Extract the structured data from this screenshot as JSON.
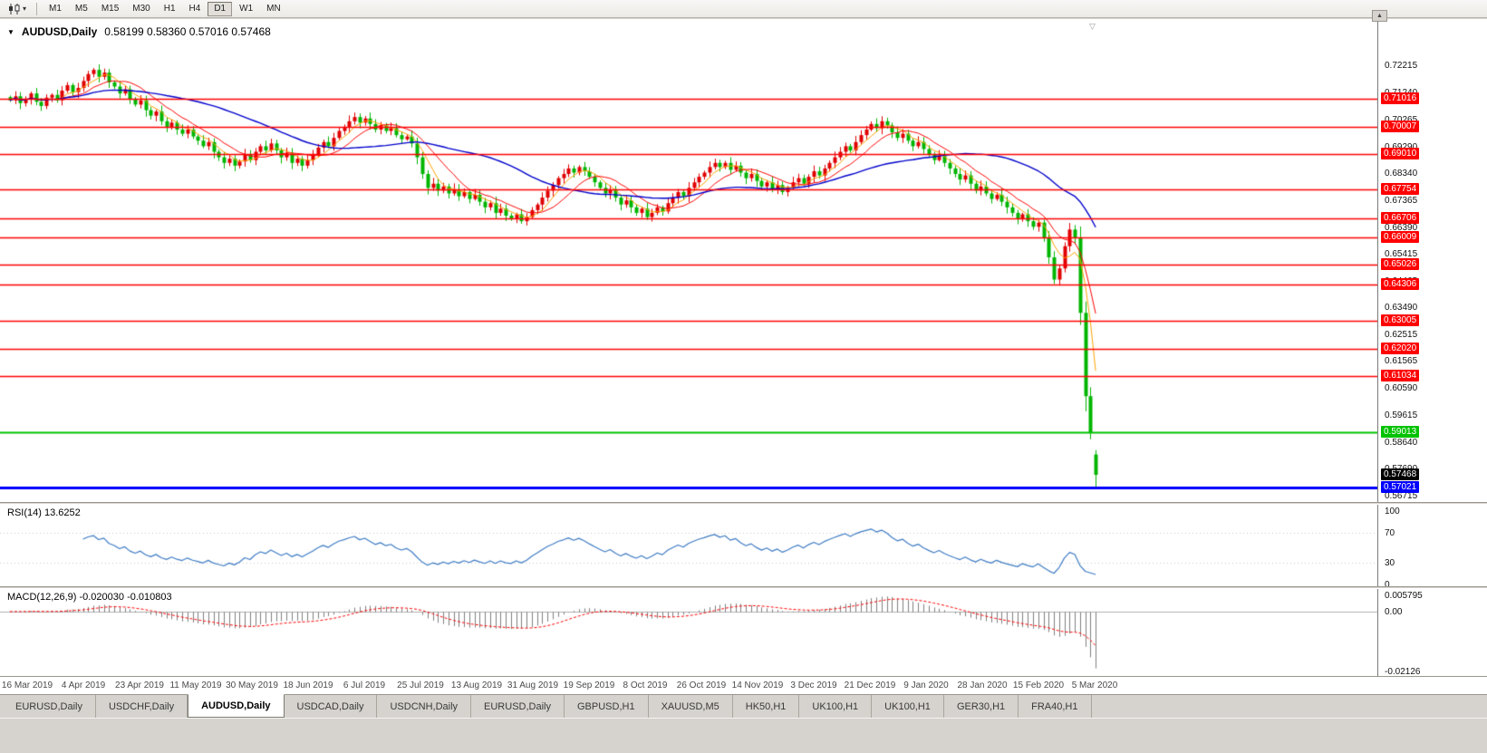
{
  "icons": {
    "chart_menu": "▼",
    "toolbar_caret": "▾",
    "scroll_up": "▲",
    "shift_marker": "▽"
  },
  "toolbar": {
    "timeframes": [
      {
        "label": "M1",
        "active": false
      },
      {
        "label": "M5",
        "active": false
      },
      {
        "label": "M15",
        "active": false
      },
      {
        "label": "M30",
        "active": false
      },
      {
        "label": "H1",
        "active": false
      },
      {
        "label": "H4",
        "active": false
      },
      {
        "label": "D1",
        "active": true
      },
      {
        "label": "W1",
        "active": false
      },
      {
        "label": "MN",
        "active": false
      }
    ]
  },
  "chart": {
    "symbol": "AUDUSD,Daily",
    "ohlc": "0.58199 0.58360 0.57016 0.57468"
  },
  "rsi": {
    "title": "RSI(14) 13.6252",
    "ticks": [
      {
        "label": "100",
        "value": 100,
        "dotted": false
      },
      {
        "label": "70",
        "value": 70,
        "dotted": true
      },
      {
        "label": "30",
        "value": 30,
        "dotted": true
      },
      {
        "label": "0",
        "value": 0,
        "dotted": false
      }
    ]
  },
  "macd": {
    "title": "MACD(12,26,9) -0.020030 -0.010803",
    "ticks": [
      {
        "label": "0.005795",
        "value": 0.005795
      },
      {
        "label": "0.00",
        "value": 0
      },
      {
        "label": "-0.02126",
        "value": -0.02126
      }
    ]
  },
  "tabs": [
    {
      "label": "EURUSD,Daily",
      "active": false
    },
    {
      "label": "USDCHF,Daily",
      "active": false
    },
    {
      "label": "AUDUSD,Daily",
      "active": true
    },
    {
      "label": "USDCAD,Daily",
      "active": false
    },
    {
      "label": "USDCNH,Daily",
      "active": false
    },
    {
      "label": "EURUSD,Daily",
      "active": false
    },
    {
      "label": "GBPUSD,H1",
      "active": false
    },
    {
      "label": "XAUUSD,M5",
      "active": false
    },
    {
      "label": "HK50,H1",
      "active": false
    },
    {
      "label": "UK100,H1",
      "active": false
    },
    {
      "label": "UK100,H1",
      "active": false
    },
    {
      "label": "GER30,H1",
      "active": false
    },
    {
      "label": "FRA40,H1",
      "active": false
    }
  ],
  "chart_data": {
    "type": "candlestick",
    "symbol": "AUDUSD",
    "period": "Daily",
    "price_domain": {
      "min": 0.5649,
      "max": 0.7388
    },
    "colors": {
      "up": "#e00000",
      "down": "#00b500",
      "ma_fast": "#ffa200",
      "ma_mid": "#ff0000",
      "ma_slow": "#0000cc",
      "rsi": "#3f7cc4",
      "macd_hist": "#7f7f7f",
      "macd_signal": "#ff0000"
    },
    "indicator_params": {
      "ma_fast": 5,
      "ma_mid": 10,
      "ma_slow": 34,
      "rsi_period": 14,
      "macd": [
        12,
        26,
        9
      ]
    },
    "last_candle": {
      "open": 0.58199,
      "high": 0.5836,
      "low": 0.57016,
      "close": 0.57468
    },
    "current_price": {
      "label": "0.57468",
      "value": 0.57468,
      "color": "#000000"
    },
    "levels": [
      {
        "label": "0.71016",
        "value": 0.71016,
        "color": "#ff0000",
        "width": 1.4
      },
      {
        "label": "0.70007",
        "value": 0.70007,
        "color": "#ff0000",
        "width": 1.4
      },
      {
        "label": "0.69010",
        "value": 0.6901,
        "color": "#ff0000",
        "width": 1.4
      },
      {
        "label": "0.67754",
        "value": 0.67754,
        "color": "#ff0000",
        "width": 1.4
      },
      {
        "label": "0.66706",
        "value": 0.66706,
        "color": "#ff0000",
        "width": 1.4
      },
      {
        "label": "0.66009",
        "value": 0.66009,
        "color": "#ff0000",
        "width": 1.4
      },
      {
        "label": "0.65026",
        "value": 0.65026,
        "color": "#ff0000",
        "width": 1.4
      },
      {
        "label": "0.64306",
        "value": 0.64306,
        "color": "#ff0000",
        "width": 1.4
      },
      {
        "label": "0.63005",
        "value": 0.63005,
        "color": "#ff0000",
        "width": 1.4
      },
      {
        "label": "0.62020",
        "value": 0.6202,
        "color": "#ff0000",
        "width": 1.4
      },
      {
        "label": "0.61034",
        "value": 0.61034,
        "color": "#ff0000",
        "width": 1.4
      },
      {
        "label": "0.59013",
        "value": 0.59013,
        "color": "#00c200",
        "width": 2
      },
      {
        "label": "0.57021",
        "value": 0.57021,
        "color": "#0000ff",
        "width": 3
      }
    ],
    "price_axis_ticks": [
      {
        "label": "0.72215",
        "value": 0.72215
      },
      {
        "label": "0.71240",
        "value": 0.7124
      },
      {
        "label": "0.70265",
        "value": 0.70265
      },
      {
        "label": "0.69290",
        "value": 0.6929
      },
      {
        "label": "0.68340",
        "value": 0.6834
      },
      {
        "label": "0.67365",
        "value": 0.67365
      },
      {
        "label": "0.66390",
        "value": 0.6639
      },
      {
        "label": "0.65415",
        "value": 0.65415
      },
      {
        "label": "0.64465",
        "value": 0.64465
      },
      {
        "label": "0.63490",
        "value": 0.6349
      },
      {
        "label": "0.62515",
        "value": 0.62515
      },
      {
        "label": "0.61565",
        "value": 0.61565
      },
      {
        "label": "0.60590",
        "value": 0.6059
      },
      {
        "label": "0.59615",
        "value": 0.59615
      },
      {
        "label": "0.58640",
        "value": 0.5864
      },
      {
        "label": "0.57690",
        "value": 0.5769
      },
      {
        "label": "0.56715",
        "value": 0.56715
      }
    ],
    "date_labels": [
      "16 Mar 2019",
      "4 Apr 2019",
      "23 Apr 2019",
      "11 May 2019",
      "30 May 2019",
      "18 Jun 2019",
      "6 Jul 2019",
      "25 Jul 2019",
      "13 Aug 2019",
      "31 Aug 2019",
      "19 Sep 2019",
      "8 Oct 2019",
      "26 Oct 2019",
      "14 Nov 2019",
      "3 Dec 2019",
      "21 Dec 2019",
      "9 Jan 2020",
      "28 Jan 2020",
      "15 Feb 2020",
      "5 Mar 2020"
    ],
    "closes": [
      0.7095,
      0.711,
      0.7085,
      0.71,
      0.712,
      0.709,
      0.7075,
      0.7105,
      0.7115,
      0.7095,
      0.713,
      0.715,
      0.7125,
      0.714,
      0.7165,
      0.719,
      0.7205,
      0.718,
      0.7195,
      0.716,
      0.7145,
      0.712,
      0.7135,
      0.71,
      0.708,
      0.7095,
      0.706,
      0.704,
      0.7055,
      0.702,
      0.7,
      0.7015,
      0.699,
      0.6975,
      0.699,
      0.6965,
      0.695,
      0.693,
      0.6945,
      0.691,
      0.689,
      0.687,
      0.6885,
      0.686,
      0.6875,
      0.69,
      0.688,
      0.691,
      0.693,
      0.6915,
      0.694,
      0.6915,
      0.689,
      0.6905,
      0.687,
      0.6885,
      0.686,
      0.688,
      0.69,
      0.6925,
      0.6945,
      0.693,
      0.696,
      0.6985,
      0.7,
      0.702,
      0.7035,
      0.7015,
      0.703,
      0.701,
      0.699,
      0.7005,
      0.6985,
      0.6995,
      0.697,
      0.6955,
      0.6965,
      0.694,
      0.689,
      0.683,
      0.678,
      0.6795,
      0.677,
      0.6785,
      0.676,
      0.6775,
      0.675,
      0.6765,
      0.674,
      0.6755,
      0.673,
      0.671,
      0.6725,
      0.669,
      0.6705,
      0.668,
      0.667,
      0.6685,
      0.666,
      0.6675,
      0.67,
      0.672,
      0.6745,
      0.677,
      0.679,
      0.6815,
      0.683,
      0.685,
      0.6835,
      0.6855,
      0.684,
      0.682,
      0.68,
      0.678,
      0.676,
      0.6775,
      0.6745,
      0.672,
      0.6735,
      0.671,
      0.669,
      0.6705,
      0.6675,
      0.669,
      0.671,
      0.6695,
      0.6725,
      0.6745,
      0.6765,
      0.675,
      0.678,
      0.68,
      0.682,
      0.6835,
      0.6855,
      0.687,
      0.6855,
      0.687,
      0.6845,
      0.686,
      0.6835,
      0.6815,
      0.683,
      0.6805,
      0.6785,
      0.68,
      0.6775,
      0.679,
      0.6765,
      0.678,
      0.68,
      0.6815,
      0.6795,
      0.682,
      0.684,
      0.6825,
      0.685,
      0.687,
      0.689,
      0.691,
      0.693,
      0.6915,
      0.6945,
      0.697,
      0.699,
      0.701,
      0.6995,
      0.702,
      0.7005,
      0.698,
      0.696,
      0.6975,
      0.695,
      0.693,
      0.6945,
      0.692,
      0.69,
      0.688,
      0.6895,
      0.687,
      0.685,
      0.683,
      0.681,
      0.6825,
      0.6795,
      0.677,
      0.6785,
      0.676,
      0.674,
      0.6755,
      0.673,
      0.671,
      0.669,
      0.667,
      0.6685,
      0.666,
      0.664,
      0.6655,
      0.66,
      0.653,
      0.645,
      0.649,
      0.657,
      0.663,
      0.66,
      0.633,
      0.603,
      0.59,
      0.57468
    ]
  }
}
